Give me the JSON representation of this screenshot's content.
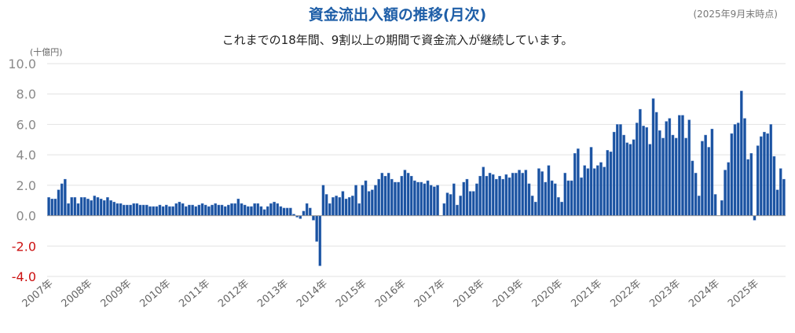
{
  "chart_data": {
    "type": "bar",
    "title": "資金流出入額の推移(月次)",
    "subtitle": "これまでの18年間、9割以上の期間で資金流入が継続しています。",
    "as_of": "(2025年9月末時点)",
    "unit": "(十億円)",
    "ylim": [
      -4.0,
      10.0
    ],
    "y_ticks": [
      "10.0",
      "8.0",
      "6.0",
      "4.0",
      "2.0",
      "0.0",
      "-2.0",
      "-4.0"
    ],
    "x_tick_labels": [
      "2007年",
      "2008年",
      "2009年",
      "2010年",
      "2011年",
      "2012年",
      "2013年",
      "2014年",
      "2015年",
      "2016年",
      "2017年",
      "2018年",
      "2019年",
      "2020年",
      "2021年",
      "2022年",
      "2023年",
      "2024年",
      "2025年"
    ],
    "start_month": "2007-01",
    "bar_color": "#1a52a0",
    "grid": true,
    "values": [
      1.2,
      1.1,
      1.1,
      1.7,
      2.1,
      2.4,
      0.8,
      1.2,
      1.2,
      0.8,
      1.2,
      1.2,
      1.1,
      1.0,
      1.3,
      1.2,
      1.1,
      1.0,
      1.2,
      1.0,
      0.9,
      0.8,
      0.8,
      0.7,
      0.7,
      0.7,
      0.8,
      0.8,
      0.7,
      0.7,
      0.7,
      0.6,
      0.6,
      0.6,
      0.7,
      0.6,
      0.7,
      0.6,
      0.6,
      0.8,
      0.9,
      0.8,
      0.6,
      0.7,
      0.7,
      0.6,
      0.7,
      0.8,
      0.7,
      0.6,
      0.7,
      0.8,
      0.7,
      0.7,
      0.6,
      0.7,
      0.8,
      0.8,
      1.1,
      0.8,
      0.7,
      0.6,
      0.6,
      0.8,
      0.8,
      0.6,
      0.4,
      0.6,
      0.8,
      0.9,
      0.8,
      0.6,
      0.5,
      0.5,
      0.5,
      0.1,
      -0.1,
      -0.2,
      0.3,
      0.8,
      0.5,
      -0.3,
      -1.7,
      -3.3,
      2.0,
      1.4,
      0.8,
      1.2,
      1.3,
      1.2,
      1.6,
      1.1,
      1.2,
      1.3,
      2.0,
      0.8,
      2.0,
      2.3,
      1.6,
      1.7,
      2.0,
      2.4,
      2.8,
      2.6,
      2.8,
      2.4,
      2.2,
      2.2,
      2.6,
      3.0,
      2.8,
      2.6,
      2.3,
      2.2,
      2.2,
      2.1,
      2.3,
      2.0,
      1.9,
      2.0,
      0.0,
      0.8,
      1.5,
      1.4,
      2.1,
      0.7,
      1.3,
      2.2,
      2.4,
      1.6,
      1.6,
      2.1,
      2.6,
      3.2,
      2.6,
      2.8,
      2.7,
      2.4,
      2.6,
      2.4,
      2.7,
      2.5,
      2.8,
      2.8,
      3.0,
      2.8,
      3.0,
      2.1,
      1.3,
      0.9,
      3.1,
      2.9,
      2.2,
      3.3,
      2.3,
      2.1,
      1.2,
      0.9,
      2.8,
      2.3,
      2.3,
      4.1,
      4.4,
      2.5,
      3.3,
      3.1,
      4.5,
      3.1,
      3.3,
      3.5,
      3.2,
      4.3,
      4.2,
      5.5,
      6.0,
      6.0,
      5.3,
      4.8,
      4.7,
      5.0,
      6.1,
      7.0,
      5.9,
      5.8,
      4.7,
      7.7,
      6.8,
      5.6,
      5.1,
      6.2,
      6.4,
      5.3,
      5.1,
      6.6,
      6.6,
      5.1,
      6.3,
      3.6,
      2.8,
      1.3,
      4.9,
      5.3,
      4.5,
      5.7,
      1.4,
      0.0,
      1.0,
      3.0,
      3.5,
      5.4,
      6.0,
      6.1,
      8.2,
      6.4,
      3.7,
      4.1,
      -0.3,
      4.6,
      5.2,
      5.5,
      5.4,
      6.0,
      3.9,
      1.7,
      3.1,
      2.4
    ]
  }
}
